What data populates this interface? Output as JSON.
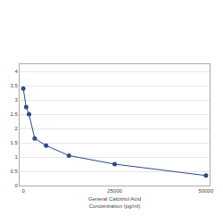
{
  "chart_data": {
    "type": "line",
    "x_label": "General Calcitriol Acid\nConcentration (pg/ml)",
    "x": [
      0,
      781,
      1562,
      3125,
      6250,
      12500,
      25000,
      50000
    ],
    "values": [
      3.4,
      2.75,
      2.5,
      1.65,
      1.4,
      1.05,
      0.75,
      0.35
    ],
    "color": "#2e4a87",
    "marker": "circle",
    "line_style": "solid",
    "xlim": [
      -1000,
      51000
    ],
    "xticks": [
      0,
      25000,
      50000
    ],
    "ylim": [
      0,
      4.25
    ],
    "yticks": [
      0,
      0.5,
      1,
      1.5,
      2,
      2.5,
      3,
      3.5,
      4
    ],
    "grid": true
  }
}
